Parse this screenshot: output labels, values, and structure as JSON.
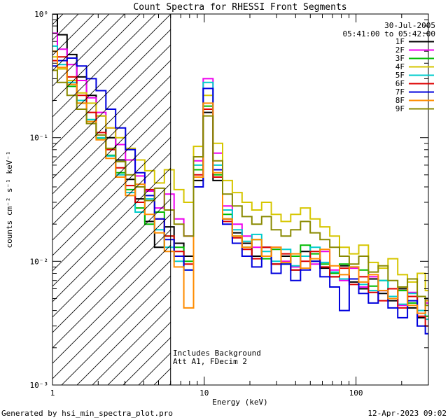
{
  "header": {
    "title": "Count Spectra for RHESSI Front Segments"
  },
  "info": {
    "date": "30-Jul-2005",
    "time_range": "05:41:00 to 05:42:00"
  },
  "annotations": {
    "line1": "Includes Background",
    "line2": "Att A1, FDecim 2"
  },
  "footer": {
    "left": "Generated by hsi_min_spectra_plot.pro",
    "right": "12-Apr-2023 09:02"
  },
  "chart_data": {
    "type": "line",
    "mode": "histogram-step",
    "title": "Count Spectra for RHESSI Front Segments",
    "xlabel": "Energy (keV)",
    "ylabel": "counts cm⁻² s⁻¹ keV⁻¹",
    "xscale": "log",
    "yscale": "log",
    "xlim": [
      1,
      300
    ],
    "ylim": [
      0.001,
      1.0
    ],
    "grid": false,
    "legend_position": "top-right",
    "x_ticks": [
      {
        "value": 1,
        "label": "1"
      },
      {
        "value": 10,
        "label": "10"
      },
      {
        "value": 100,
        "label": "100"
      }
    ],
    "y_ticks": [
      {
        "value": 1,
        "label": "10⁰"
      },
      {
        "value": 0.1,
        "label": "10⁻¹"
      },
      {
        "value": 0.01,
        "label": "10⁻²"
      },
      {
        "value": 0.001,
        "label": "10⁻³"
      }
    ],
    "attenuator_boundary_kev": 6,
    "hatched_region": {
      "from": 1,
      "to": 6
    },
    "energies": [
      1.0,
      1.16,
      1.34,
      1.56,
      1.8,
      2.09,
      2.42,
      2.81,
      3.26,
      3.77,
      4.37,
      5.07,
      5.88,
      6.81,
      7.9,
      9.15,
      10.6,
      12.3,
      14.2,
      16.5,
      19.1,
      22.2,
      25.7,
      29.8,
      34.5,
      40.0,
      46.4,
      53.8,
      62.4,
      72.3,
      83.8,
      97.1,
      112,
      130,
      151,
      175,
      203,
      235,
      273,
      300
    ],
    "series": [
      {
        "name": "1F",
        "color": "#000000",
        "values": [
          1.0,
          0.68,
          0.47,
          0.31,
          0.22,
          0.15,
          0.1,
          0.066,
          0.046,
          0.032,
          0.021,
          0.013,
          0.019,
          0.014,
          0.011,
          0.045,
          0.16,
          0.045,
          0.022,
          0.017,
          0.014,
          0.011,
          0.013,
          0.0095,
          0.011,
          0.0085,
          0.012,
          0.01,
          0.0088,
          0.0075,
          0.0092,
          0.0068,
          0.006,
          0.0072,
          0.0055,
          0.0048,
          0.006,
          0.0042,
          0.0035,
          0.005
        ]
      },
      {
        "name": "2F",
        "color": "#ee00ee",
        "values": [
          0.7,
          0.52,
          0.39,
          0.29,
          0.21,
          0.16,
          0.12,
          0.088,
          0.066,
          0.049,
          0.037,
          0.027,
          0.035,
          0.022,
          0.016,
          0.065,
          0.3,
          0.075,
          0.028,
          0.02,
          0.016,
          0.013,
          0.011,
          0.013,
          0.01,
          0.009,
          0.011,
          0.0095,
          0.012,
          0.0085,
          0.007,
          0.0088,
          0.0062,
          0.0075,
          0.0058,
          0.0052,
          0.0044,
          0.0056,
          0.0038,
          0.0046
        ]
      },
      {
        "name": "3F",
        "color": "#00bb00",
        "values": [
          0.5,
          0.36,
          0.26,
          0.19,
          0.14,
          0.099,
          0.072,
          0.052,
          0.038,
          0.027,
          0.02,
          0.025,
          0.016,
          0.013,
          0.01,
          0.055,
          0.18,
          0.05,
          0.024,
          0.016,
          0.013,
          0.015,
          0.0105,
          0.0125,
          0.0095,
          0.011,
          0.0135,
          0.0115,
          0.0095,
          0.008,
          0.0095,
          0.0072,
          0.0085,
          0.0063,
          0.007,
          0.005,
          0.0058,
          0.0046,
          0.0052,
          0.0036
        ]
      },
      {
        "name": "4F",
        "color": "#d6c600",
        "values": [
          0.45,
          0.36,
          0.29,
          0.23,
          0.19,
          0.15,
          0.12,
          0.1,
          0.082,
          0.066,
          0.054,
          0.043,
          0.055,
          0.038,
          0.03,
          0.085,
          0.22,
          0.09,
          0.045,
          0.036,
          0.03,
          0.026,
          0.03,
          0.024,
          0.021,
          0.024,
          0.027,
          0.022,
          0.019,
          0.016,
          0.013,
          0.0115,
          0.0135,
          0.0098,
          0.0088,
          0.0105,
          0.0078,
          0.0068,
          0.008,
          0.0058
        ]
      },
      {
        "name": "5F",
        "color": "#00cccc",
        "values": [
          0.55,
          0.39,
          0.28,
          0.2,
          0.14,
          0.1,
          0.071,
          0.05,
          0.036,
          0.025,
          0.032,
          0.018,
          0.013,
          0.01,
          0.0085,
          0.06,
          0.28,
          0.06,
          0.026,
          0.018,
          0.0145,
          0.0165,
          0.012,
          0.01,
          0.0125,
          0.0092,
          0.011,
          0.013,
          0.0098,
          0.0082,
          0.0072,
          0.009,
          0.0065,
          0.0058,
          0.007,
          0.0052,
          0.0045,
          0.0055,
          0.004,
          0.0034
        ]
      },
      {
        "name": "6F",
        "color": "#dd0000",
        "values": [
          0.42,
          0.45,
          0.31,
          0.22,
          0.16,
          0.11,
          0.08,
          0.057,
          0.041,
          0.03,
          0.038,
          0.022,
          0.016,
          0.012,
          0.0095,
          0.05,
          0.17,
          0.048,
          0.021,
          0.0155,
          0.0125,
          0.0105,
          0.013,
          0.0095,
          0.0115,
          0.0085,
          0.01,
          0.012,
          0.009,
          0.0075,
          0.0088,
          0.0065,
          0.0075,
          0.0056,
          0.0048,
          0.006,
          0.0042,
          0.0052,
          0.0036,
          0.003
        ]
      },
      {
        "name": "7F",
        "color": "#0000dd",
        "values": [
          0.38,
          0.42,
          0.44,
          0.38,
          0.3,
          0.24,
          0.17,
          0.12,
          0.08,
          0.052,
          0.034,
          0.022,
          0.015,
          0.011,
          0.0085,
          0.04,
          0.25,
          0.055,
          0.02,
          0.014,
          0.011,
          0.009,
          0.011,
          0.008,
          0.0095,
          0.007,
          0.0085,
          0.01,
          0.0075,
          0.0062,
          0.004,
          0.0072,
          0.0055,
          0.0046,
          0.0058,
          0.0042,
          0.0035,
          0.0048,
          0.003,
          0.0026
        ]
      },
      {
        "name": "8F",
        "color": "#ff8c00",
        "values": [
          0.5,
          0.37,
          0.27,
          0.19,
          0.135,
          0.096,
          0.068,
          0.048,
          0.034,
          0.042,
          0.024,
          0.017,
          0.012,
          0.009,
          0.0042,
          0.048,
          0.19,
          0.052,
          0.022,
          0.016,
          0.013,
          0.015,
          0.011,
          0.013,
          0.0098,
          0.0115,
          0.0088,
          0.0105,
          0.0125,
          0.0092,
          0.0078,
          0.009,
          0.0068,
          0.0078,
          0.0058,
          0.005,
          0.0062,
          0.0044,
          0.0038,
          0.0048
        ]
      },
      {
        "name": "9F",
        "color": "#8a8a00",
        "values": [
          0.35,
          0.28,
          0.22,
          0.17,
          0.13,
          0.105,
          0.082,
          0.064,
          0.05,
          0.04,
          0.031,
          0.039,
          0.026,
          0.02,
          0.016,
          0.07,
          0.15,
          0.065,
          0.035,
          0.028,
          0.023,
          0.02,
          0.023,
          0.018,
          0.016,
          0.018,
          0.021,
          0.017,
          0.015,
          0.013,
          0.011,
          0.0095,
          0.011,
          0.0082,
          0.0092,
          0.007,
          0.0062,
          0.0072,
          0.0052,
          0.0044
        ]
      }
    ]
  }
}
